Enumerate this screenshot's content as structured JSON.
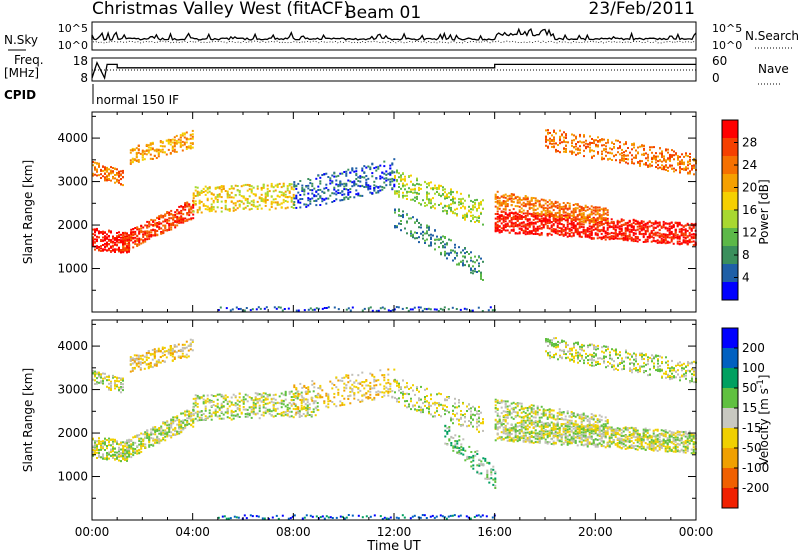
{
  "header": {
    "title": "Christmas Valley West (fitACF)",
    "beam": "Beam 01",
    "date": "23/Feb/2011"
  },
  "panel_labels": {
    "nsky": "N.Sky",
    "nsearch": "N.Search",
    "freq": "Freq.",
    "freq_unit": "[MHz]",
    "nave": "Nave",
    "cpid": "CPID",
    "cpid_value": "normal 150 IF"
  },
  "colors": {
    "power_scale": [
      "#0000ff",
      "#1f5fa6",
      "#3a8f5c",
      "#5cb848",
      "#a8d830",
      "#f5d000",
      "#f5a000",
      "#f57000",
      "#f54000",
      "#ff0000"
    ],
    "velocity_scale": [
      "#0000ff",
      "#0060c0",
      "#00a060",
      "#60c040",
      "#c8c8c0",
      "#f0d000",
      "#f0a000",
      "#f06000",
      "#f02000"
    ],
    "ground_scatter": "#c0bfb8"
  },
  "chart_data": [
    {
      "type": "line",
      "panel": "noise",
      "series": [
        {
          "name": "N.Sky"
        },
        {
          "name": "N.Search"
        }
      ],
      "left_ticks": [
        "10^5",
        "10^0"
      ],
      "right_ticks": [
        "10^5",
        "10^0"
      ]
    },
    {
      "type": "line",
      "panel": "freq_nave",
      "left_ticks": [
        "18",
        "8"
      ],
      "right_ticks": [
        "60",
        "0"
      ],
      "frequency_mhz": [
        [
          0,
          8
        ],
        [
          0.2,
          17
        ],
        [
          0.5,
          8
        ],
        [
          0.6,
          16
        ],
        [
          1.0,
          16
        ],
        [
          1.0,
          14
        ],
        [
          16.0,
          14
        ],
        [
          16.0,
          16
        ],
        [
          24,
          16
        ]
      ],
      "nave": [
        [
          0,
          8
        ],
        [
          24,
          8
        ]
      ]
    },
    {
      "type": "heatmap",
      "panel": "power",
      "ylabel": "Slant Range [km]",
      "yticks": [
        1000,
        2000,
        3000,
        4000
      ],
      "ylim": [
        0,
        4600
      ],
      "colorbar_label": "Power [dB]",
      "colorbar_ticks": [
        "28",
        "24",
        "20",
        "16",
        "12",
        "8",
        "4"
      ],
      "colorbar_range": [
        0,
        30
      ]
    },
    {
      "type": "heatmap",
      "panel": "velocity",
      "ylabel": "Slant Range [km]",
      "xlabel": "Time UT",
      "yticks": [
        1000,
        2000,
        3000,
        4000
      ],
      "ylim": [
        0,
        4600
      ],
      "xticks": [
        "00:00",
        "04:00",
        "08:00",
        "12:00",
        "16:00",
        "20:00",
        "00:00"
      ],
      "xlim_hours": [
        0,
        24
      ],
      "colorbar_label": "Velocity [m s",
      "colorbar_unit_exp": "-1",
      "colorbar_ticks": [
        "200",
        "100",
        "50",
        "15",
        "-15",
        "-50",
        "-100",
        "-200"
      ]
    }
  ]
}
